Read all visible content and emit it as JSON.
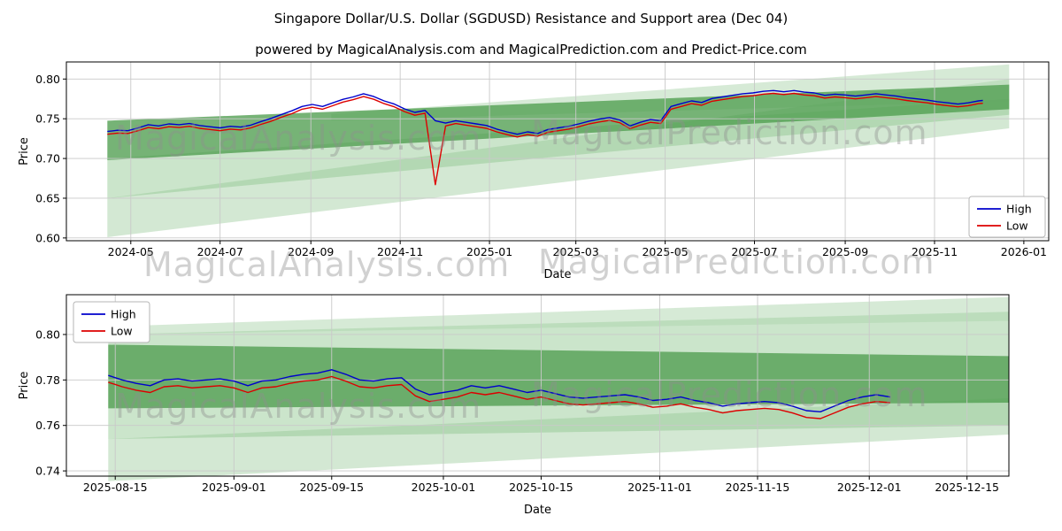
{
  "figure": {
    "title": "Singapore Dollar/U.S. Dollar (SGDUSD) Resistance and Support area (Dec 04)",
    "subtitle": "powered by MagicalAnalysis.com and MagicalPrediction.com and Predict-Price.com"
  },
  "watermarks": {
    "analysis": "MagicalAnalysis.com",
    "prediction": "MagicalPrediction.com"
  },
  "chart_data": [
    {
      "type": "line",
      "title": "",
      "xlabel": "Date",
      "ylabel": "Price",
      "xlim": [
        "2024-03-18",
        "2026-01-18"
      ],
      "ylim": [
        0.5965,
        0.8215
      ],
      "grid": true,
      "x_ticks": [
        {
          "v": "2024-05-01",
          "label": "2024-05"
        },
        {
          "v": "2024-07-01",
          "label": "2024-07"
        },
        {
          "v": "2024-09-01",
          "label": "2024-09"
        },
        {
          "v": "2024-11-01",
          "label": "2024-11"
        },
        {
          "v": "2025-01-01",
          "label": "2025-01"
        },
        {
          "v": "2025-03-01",
          "label": "2025-03"
        },
        {
          "v": "2025-05-01",
          "label": "2025-05"
        },
        {
          "v": "2025-07-01",
          "label": "2025-07"
        },
        {
          "v": "2025-09-01",
          "label": "2025-09"
        },
        {
          "v": "2025-11-01",
          "label": "2025-11"
        },
        {
          "v": "2026-01-01",
          "label": "2026-01"
        }
      ],
      "y_ticks": [
        {
          "v": 0.6,
          "label": "0.60"
        },
        {
          "v": 0.65,
          "label": "0.65"
        },
        {
          "v": 0.7,
          "label": "0.70"
        },
        {
          "v": 0.75,
          "label": "0.75"
        },
        {
          "v": 0.8,
          "label": "0.80"
        }
      ],
      "legend": {
        "loc": "lower right",
        "entries": [
          {
            "label": "High",
            "color": "#0000cc"
          },
          {
            "label": "Low",
            "color": "#dd0000"
          }
        ]
      },
      "bands": [
        {
          "x0": "2024-04-15",
          "y0": [
            0.601,
            0.65
          ],
          "x1": "2025-12-22",
          "y1": [
            0.738,
            0.8
          ],
          "color": "#aed6ae",
          "opacity": 0.55
        },
        {
          "x0": "2024-04-15",
          "y0": [
            0.65,
            0.7
          ],
          "x1": "2025-12-22",
          "y1": [
            0.755,
            0.775
          ],
          "color": "#8cc68c",
          "opacity": 0.45
        },
        {
          "x0": "2024-09-15",
          "y0": [
            0.748,
            0.756
          ],
          "x1": "2025-12-22",
          "y1": [
            0.772,
            0.8185
          ],
          "color": "#aed6ae",
          "opacity": 0.5
        },
        {
          "x0": "2024-04-15",
          "y0": [
            0.698,
            0.7475
          ],
          "x1": "2025-12-22",
          "y1": [
            0.762,
            0.793
          ],
          "color": "#4f9d4f",
          "opacity": 0.78
        }
      ],
      "dates": [
        "2024-04-15",
        "2024-04-22",
        "2024-04-29",
        "2024-05-06",
        "2024-05-13",
        "2024-05-20",
        "2024-05-27",
        "2024-06-03",
        "2024-06-10",
        "2024-06-17",
        "2024-06-24",
        "2024-07-01",
        "2024-07-08",
        "2024-07-15",
        "2024-07-22",
        "2024-07-29",
        "2024-08-05",
        "2024-08-12",
        "2024-08-19",
        "2024-08-26",
        "2024-09-02",
        "2024-09-09",
        "2024-09-16",
        "2024-09-23",
        "2024-09-30",
        "2024-10-07",
        "2024-10-14",
        "2024-10-21",
        "2024-10-28",
        "2024-11-04",
        "2024-11-11",
        "2024-11-18",
        "2024-11-25",
        "2024-12-02",
        "2024-12-09",
        "2024-12-16",
        "2024-12-23",
        "2024-12-30",
        "2025-01-06",
        "2025-01-13",
        "2025-01-20",
        "2025-01-27",
        "2025-02-03",
        "2025-02-10",
        "2025-02-17",
        "2025-02-24",
        "2025-03-03",
        "2025-03-10",
        "2025-03-17",
        "2025-03-24",
        "2025-03-31",
        "2025-04-07",
        "2025-04-14",
        "2025-04-21",
        "2025-04-28",
        "2025-05-05",
        "2025-05-12",
        "2025-05-19",
        "2025-05-26",
        "2025-06-02",
        "2025-06-09",
        "2025-06-16",
        "2025-06-23",
        "2025-06-30",
        "2025-07-07",
        "2025-07-14",
        "2025-07-21",
        "2025-07-28",
        "2025-08-04",
        "2025-08-11",
        "2025-08-18",
        "2025-08-25",
        "2025-09-01",
        "2025-09-08",
        "2025-09-15",
        "2025-09-22",
        "2025-09-29",
        "2025-10-06",
        "2025-10-13",
        "2025-10-20",
        "2025-10-27",
        "2025-11-03",
        "2025-11-10",
        "2025-11-17",
        "2025-11-24",
        "2025-12-01",
        "2025-12-04"
      ],
      "series": [
        {
          "name": "High",
          "color": "#0000cc",
          "values": [
            0.734,
            0.7355,
            0.735,
            0.7385,
            0.7425,
            0.741,
            0.7435,
            0.7425,
            0.744,
            0.7415,
            0.74,
            0.7385,
            0.7405,
            0.7395,
            0.742,
            0.7465,
            0.7505,
            0.7555,
            0.76,
            0.7655,
            0.768,
            0.7655,
            0.77,
            0.7745,
            0.7775,
            0.7815,
            0.778,
            0.7725,
            0.7685,
            0.7625,
            0.758,
            0.7605,
            0.7475,
            0.7445,
            0.7475,
            0.7455,
            0.7435,
            0.7415,
            0.737,
            0.7335,
            0.7305,
            0.7335,
            0.7315,
            0.7365,
            0.7385,
            0.7405,
            0.7435,
            0.747,
            0.7495,
            0.7515,
            0.7485,
            0.741,
            0.7455,
            0.749,
            0.7475,
            0.7655,
            0.769,
            0.7725,
            0.7705,
            0.7755,
            0.7775,
            0.7795,
            0.7815,
            0.7825,
            0.7845,
            0.7855,
            0.784,
            0.7855,
            0.7835,
            0.7825,
            0.7795,
            0.781,
            0.78,
            0.7785,
            0.78,
            0.7815,
            0.78,
            0.7785,
            0.7765,
            0.775,
            0.7735,
            0.7715,
            0.77,
            0.7685,
            0.77,
            0.7725,
            0.773
          ]
        },
        {
          "name": "Low",
          "color": "#dd0000",
          "values": [
            0.7305,
            0.732,
            0.7315,
            0.735,
            0.739,
            0.7375,
            0.74,
            0.739,
            0.7405,
            0.738,
            0.7365,
            0.735,
            0.737,
            0.736,
            0.7385,
            0.743,
            0.747,
            0.752,
            0.7565,
            0.762,
            0.7645,
            0.762,
            0.7665,
            0.771,
            0.774,
            0.778,
            0.7745,
            0.769,
            0.765,
            0.759,
            0.7545,
            0.757,
            0.667,
            0.741,
            0.744,
            0.742,
            0.74,
            0.738,
            0.7335,
            0.73,
            0.727,
            0.73,
            0.728,
            0.733,
            0.735,
            0.737,
            0.74,
            0.7435,
            0.746,
            0.748,
            0.745,
            0.7375,
            0.742,
            0.7455,
            0.744,
            0.762,
            0.7655,
            0.769,
            0.767,
            0.772,
            0.774,
            0.776,
            0.778,
            0.779,
            0.781,
            0.782,
            0.7805,
            0.782,
            0.78,
            0.779,
            0.776,
            0.7775,
            0.7765,
            0.775,
            0.7765,
            0.778,
            0.7765,
            0.775,
            0.773,
            0.7715,
            0.77,
            0.768,
            0.7665,
            0.765,
            0.7665,
            0.769,
            0.7695
          ]
        }
      ]
    },
    {
      "type": "line",
      "title": "",
      "xlabel": "Date",
      "ylabel": "Price",
      "xlim": [
        "2025-08-08",
        "2025-12-21"
      ],
      "ylim": [
        0.7377,
        0.8175
      ],
      "grid": true,
      "x_ticks": [
        {
          "v": "2025-08-15",
          "label": "2025-08-15"
        },
        {
          "v": "2025-09-01",
          "label": "2025-09-01"
        },
        {
          "v": "2025-09-15",
          "label": "2025-09-15"
        },
        {
          "v": "2025-10-01",
          "label": "2025-10-01"
        },
        {
          "v": "2025-10-15",
          "label": "2025-10-15"
        },
        {
          "v": "2025-11-01",
          "label": "2025-11-01"
        },
        {
          "v": "2025-11-15",
          "label": "2025-11-15"
        },
        {
          "v": "2025-12-01",
          "label": "2025-12-01"
        },
        {
          "v": "2025-12-15",
          "label": "2025-12-15"
        }
      ],
      "y_ticks": [
        {
          "v": 0.74,
          "label": "0.74"
        },
        {
          "v": 0.76,
          "label": "0.76"
        },
        {
          "v": 0.78,
          "label": "0.78"
        },
        {
          "v": 0.8,
          "label": "0.80"
        }
      ],
      "legend": {
        "loc": "upper left",
        "entries": [
          {
            "label": "High",
            "color": "#0000cc"
          },
          {
            "label": "Low",
            "color": "#dd0000"
          }
        ]
      },
      "bands": [
        {
          "x0": "2025-08-14",
          "y0": [
            0.7355,
            0.754
          ],
          "x1": "2025-12-21",
          "y1": [
            0.756,
            0.772
          ],
          "color": "#aed6ae",
          "opacity": 0.55
        },
        {
          "x0": "2025-08-14",
          "y0": [
            0.754,
            0.8
          ],
          "x1": "2025-12-21",
          "y1": [
            0.76,
            0.81
          ],
          "color": "#8cc68c",
          "opacity": 0.45
        },
        {
          "x0": "2025-08-14",
          "y0": [
            0.8,
            0.8035
          ],
          "x1": "2025-12-21",
          "y1": [
            0.806,
            0.8165
          ],
          "color": "#aed6ae",
          "opacity": 0.5
        },
        {
          "x0": "2025-08-14",
          "y0": [
            0.7675,
            0.7955
          ],
          "x1": "2025-12-21",
          "y1": [
            0.77,
            0.7905
          ],
          "color": "#4f9d4f",
          "opacity": 0.78
        }
      ],
      "dates": [
        "2025-08-14",
        "2025-08-16",
        "2025-08-18",
        "2025-08-20",
        "2025-08-22",
        "2025-08-24",
        "2025-08-26",
        "2025-08-28",
        "2025-08-30",
        "2025-09-01",
        "2025-09-03",
        "2025-09-05",
        "2025-09-07",
        "2025-09-09",
        "2025-09-11",
        "2025-09-13",
        "2025-09-15",
        "2025-09-17",
        "2025-09-19",
        "2025-09-21",
        "2025-09-23",
        "2025-09-25",
        "2025-09-27",
        "2025-09-29",
        "2025-10-01",
        "2025-10-03",
        "2025-10-05",
        "2025-10-07",
        "2025-10-09",
        "2025-10-11",
        "2025-10-13",
        "2025-10-15",
        "2025-10-17",
        "2025-10-19",
        "2025-10-21",
        "2025-10-23",
        "2025-10-25",
        "2025-10-27",
        "2025-10-29",
        "2025-10-31",
        "2025-11-02",
        "2025-11-04",
        "2025-11-06",
        "2025-11-08",
        "2025-11-10",
        "2025-11-12",
        "2025-11-14",
        "2025-11-16",
        "2025-11-18",
        "2025-11-20",
        "2025-11-22",
        "2025-11-24",
        "2025-11-26",
        "2025-11-28",
        "2025-11-30",
        "2025-12-02",
        "2025-12-04"
      ],
      "series": [
        {
          "name": "High",
          "color": "#0000cc",
          "values": [
            0.782,
            0.78,
            0.7785,
            0.7775,
            0.78,
            0.7805,
            0.7795,
            0.78,
            0.7805,
            0.7795,
            0.7775,
            0.7795,
            0.78,
            0.7815,
            0.7825,
            0.783,
            0.7845,
            0.7825,
            0.78,
            0.7795,
            0.7805,
            0.781,
            0.776,
            0.7735,
            0.7745,
            0.7755,
            0.7775,
            0.7765,
            0.7775,
            0.776,
            0.7745,
            0.7755,
            0.774,
            0.7725,
            0.772,
            0.7725,
            0.773,
            0.7735,
            0.7725,
            0.771,
            0.7715,
            0.7725,
            0.771,
            0.77,
            0.7685,
            0.7695,
            0.77,
            0.7705,
            0.77,
            0.7685,
            0.7665,
            0.766,
            0.7685,
            0.771,
            0.7725,
            0.7735,
            0.7725
          ]
        },
        {
          "name": "Low",
          "color": "#dd0000",
          "values": [
            0.779,
            0.777,
            0.7755,
            0.7745,
            0.777,
            0.7775,
            0.7765,
            0.777,
            0.7775,
            0.7765,
            0.7745,
            0.7765,
            0.777,
            0.7785,
            0.7795,
            0.78,
            0.7815,
            0.7795,
            0.777,
            0.7765,
            0.7775,
            0.778,
            0.773,
            0.7705,
            0.7715,
            0.7725,
            0.7745,
            0.7735,
            0.7745,
            0.773,
            0.7715,
            0.7725,
            0.771,
            0.7695,
            0.769,
            0.7695,
            0.77,
            0.7705,
            0.7695,
            0.768,
            0.7685,
            0.7695,
            0.768,
            0.767,
            0.7655,
            0.7665,
            0.767,
            0.7675,
            0.767,
            0.7655,
            0.7635,
            0.763,
            0.7655,
            0.768,
            0.7695,
            0.7705,
            0.77
          ]
        }
      ]
    }
  ]
}
